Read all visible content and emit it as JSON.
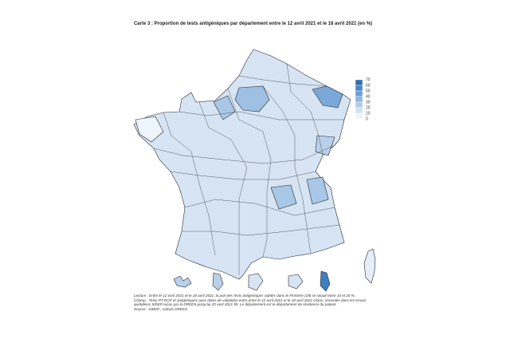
{
  "title": "Carte 3 : Proportion de tests antigéniques par département entre le 12 avril 2021 et le 18 avril 2021 (en %)",
  "legend": {
    "labels": [
      70,
      60,
      50,
      40,
      30,
      20,
      10,
      0
    ]
  },
  "notes": [
    "Lecture : Entre le 12 avril 2021 et le 18 avril 2021, la part des tests antigéniques validés dans le Finistère (29) se situait entre 10 et 20 %.",
    "Champ : Tests RT-PCR et antigéniques avec dates de validation entre entre le 12 avril 2021 et le 18 avril 2021 inclus, remontés dans les envois quotidiens SIDEP reçus par la DREES jusqu'au 20 avril 2021 5h. Le département est le département de résidence du patient.",
    "Source : SIDEP ; calculs DREES."
  ]
}
